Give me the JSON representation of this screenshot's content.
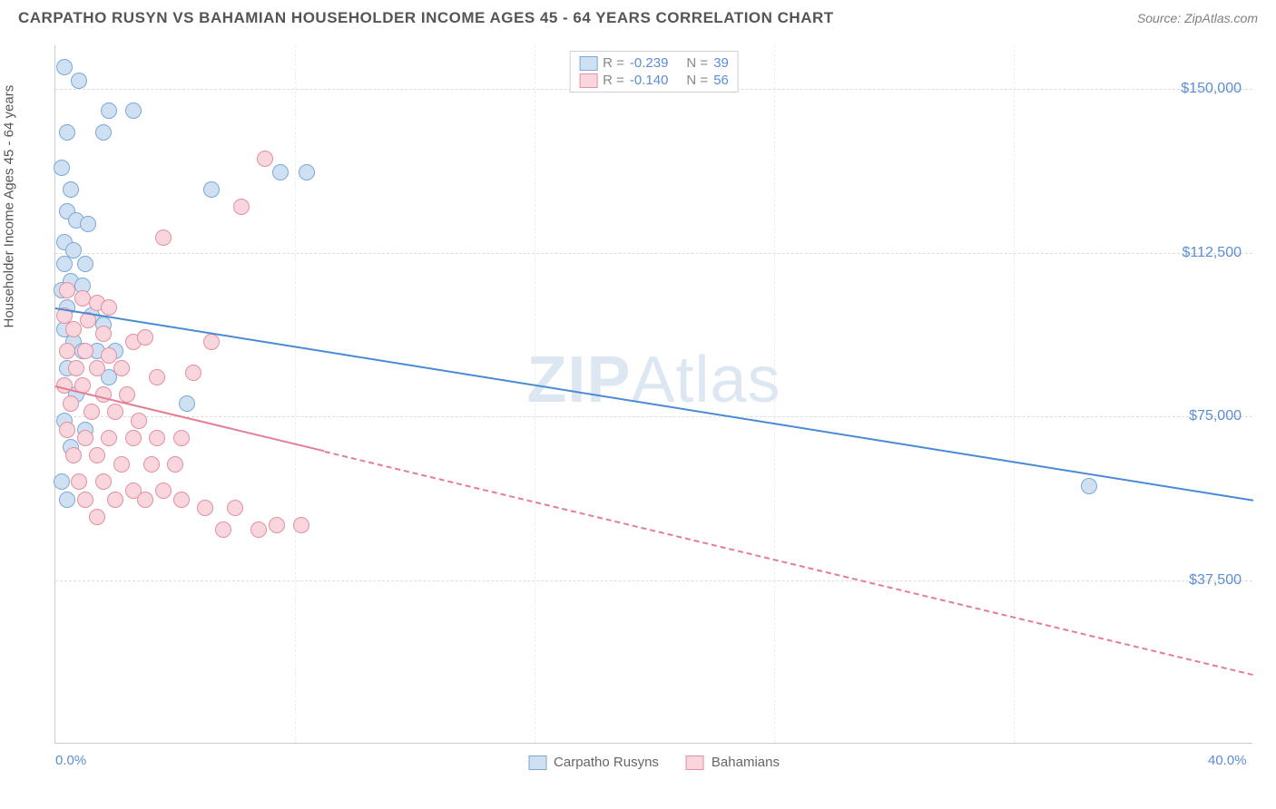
{
  "header": {
    "title": "CARPATHO RUSYN VS BAHAMIAN HOUSEHOLDER INCOME AGES 45 - 64 YEARS CORRELATION CHART",
    "source": "Source: ZipAtlas.com"
  },
  "watermark": "ZIPAtlas",
  "chart": {
    "type": "scatter",
    "ylabel": "Householder Income Ages 45 - 64 years",
    "xlim": [
      0,
      40
    ],
    "ylim": [
      0,
      160000
    ],
    "xticks": [
      0,
      40
    ],
    "xtick_labels": [
      "0.0%",
      "40.0%"
    ],
    "xminor": [
      8,
      16,
      24,
      32
    ],
    "yticks": [
      37500,
      75000,
      112500,
      150000
    ],
    "ytick_labels": [
      "$37,500",
      "$75,000",
      "$112,500",
      "$150,000"
    ],
    "background_color": "#ffffff",
    "grid_color": "#dddddd",
    "marker_size": 18,
    "series": [
      {
        "name": "Carpatho Rusyns",
        "color_fill": "#cfe0f3",
        "color_stroke": "#7aa8d8",
        "line_color": "#4a8ad4",
        "line_style": "solid",
        "R": "-0.239",
        "N": "39",
        "line_from": {
          "x": 0,
          "y": 100000
        },
        "line_to": {
          "x": 40,
          "y": 56000
        },
        "solid_until_x": 40,
        "points": [
          {
            "x": 0.3,
            "y": 155000
          },
          {
            "x": 0.8,
            "y": 152000
          },
          {
            "x": 1.8,
            "y": 145000
          },
          {
            "x": 2.6,
            "y": 145000
          },
          {
            "x": 0.4,
            "y": 140000
          },
          {
            "x": 1.6,
            "y": 140000
          },
          {
            "x": 0.2,
            "y": 132000
          },
          {
            "x": 0.5,
            "y": 127000
          },
          {
            "x": 0.4,
            "y": 122000
          },
          {
            "x": 0.7,
            "y": 120000
          },
          {
            "x": 1.1,
            "y": 119000
          },
          {
            "x": 0.3,
            "y": 115000
          },
          {
            "x": 0.6,
            "y": 113000
          },
          {
            "x": 0.3,
            "y": 110000
          },
          {
            "x": 1.0,
            "y": 110000
          },
          {
            "x": 0.5,
            "y": 106000
          },
          {
            "x": 0.2,
            "y": 104000
          },
          {
            "x": 0.9,
            "y": 105000
          },
          {
            "x": 0.4,
            "y": 100000
          },
          {
            "x": 1.2,
            "y": 98000
          },
          {
            "x": 0.3,
            "y": 95000
          },
          {
            "x": 1.6,
            "y": 96000
          },
          {
            "x": 0.6,
            "y": 92000
          },
          {
            "x": 0.9,
            "y": 90000
          },
          {
            "x": 1.4,
            "y": 90000
          },
          {
            "x": 2.0,
            "y": 90000
          },
          {
            "x": 0.4,
            "y": 86000
          },
          {
            "x": 1.8,
            "y": 84000
          },
          {
            "x": 0.7,
            "y": 80000
          },
          {
            "x": 0.3,
            "y": 74000
          },
          {
            "x": 1.0,
            "y": 72000
          },
          {
            "x": 0.5,
            "y": 68000
          },
          {
            "x": 0.2,
            "y": 60000
          },
          {
            "x": 0.4,
            "y": 56000
          },
          {
            "x": 4.4,
            "y": 78000
          },
          {
            "x": 5.2,
            "y": 127000
          },
          {
            "x": 7.5,
            "y": 131000
          },
          {
            "x": 8.4,
            "y": 131000
          },
          {
            "x": 34.5,
            "y": 59000
          }
        ]
      },
      {
        "name": "Bahamians",
        "color_fill": "#f9d6de",
        "color_stroke": "#e38fa0",
        "line_color": "#e57d95",
        "line_style": "solid-then-dashed",
        "R": "-0.140",
        "N": "56",
        "line_from": {
          "x": 0,
          "y": 82000
        },
        "line_to": {
          "x": 40,
          "y": 16000
        },
        "solid_until_x": 9,
        "points": [
          {
            "x": 0.4,
            "y": 104000
          },
          {
            "x": 0.9,
            "y": 102000
          },
          {
            "x": 1.4,
            "y": 101000
          },
          {
            "x": 1.8,
            "y": 100000
          },
          {
            "x": 0.3,
            "y": 98000
          },
          {
            "x": 1.1,
            "y": 97000
          },
          {
            "x": 0.6,
            "y": 95000
          },
          {
            "x": 1.6,
            "y": 94000
          },
          {
            "x": 3.6,
            "y": 116000
          },
          {
            "x": 7.0,
            "y": 134000
          },
          {
            "x": 6.2,
            "y": 123000
          },
          {
            "x": 2.6,
            "y": 92000
          },
          {
            "x": 0.4,
            "y": 90000
          },
          {
            "x": 1.0,
            "y": 90000
          },
          {
            "x": 1.8,
            "y": 89000
          },
          {
            "x": 0.7,
            "y": 86000
          },
          {
            "x": 1.4,
            "y": 86000
          },
          {
            "x": 2.2,
            "y": 86000
          },
          {
            "x": 3.0,
            "y": 93000
          },
          {
            "x": 0.3,
            "y": 82000
          },
          {
            "x": 0.9,
            "y": 82000
          },
          {
            "x": 1.6,
            "y": 80000
          },
          {
            "x": 2.4,
            "y": 80000
          },
          {
            "x": 3.4,
            "y": 84000
          },
          {
            "x": 4.6,
            "y": 85000
          },
          {
            "x": 5.2,
            "y": 92000
          },
          {
            "x": 0.5,
            "y": 78000
          },
          {
            "x": 1.2,
            "y": 76000
          },
          {
            "x": 2.0,
            "y": 76000
          },
          {
            "x": 2.8,
            "y": 74000
          },
          {
            "x": 0.4,
            "y": 72000
          },
          {
            "x": 1.0,
            "y": 70000
          },
          {
            "x": 1.8,
            "y": 70000
          },
          {
            "x": 2.6,
            "y": 70000
          },
          {
            "x": 3.4,
            "y": 70000
          },
          {
            "x": 4.2,
            "y": 70000
          },
          {
            "x": 0.6,
            "y": 66000
          },
          {
            "x": 1.4,
            "y": 66000
          },
          {
            "x": 2.2,
            "y": 64000
          },
          {
            "x": 3.2,
            "y": 64000
          },
          {
            "x": 4.0,
            "y": 64000
          },
          {
            "x": 0.8,
            "y": 60000
          },
          {
            "x": 1.6,
            "y": 60000
          },
          {
            "x": 2.6,
            "y": 58000
          },
          {
            "x": 3.6,
            "y": 58000
          },
          {
            "x": 1.0,
            "y": 56000
          },
          {
            "x": 2.0,
            "y": 56000
          },
          {
            "x": 3.0,
            "y": 56000
          },
          {
            "x": 4.2,
            "y": 56000
          },
          {
            "x": 1.4,
            "y": 52000
          },
          {
            "x": 5.0,
            "y": 54000
          },
          {
            "x": 6.0,
            "y": 54000
          },
          {
            "x": 5.6,
            "y": 49000
          },
          {
            "x": 6.8,
            "y": 49000
          },
          {
            "x": 7.4,
            "y": 50000
          },
          {
            "x": 8.2,
            "y": 50000
          }
        ]
      }
    ]
  }
}
